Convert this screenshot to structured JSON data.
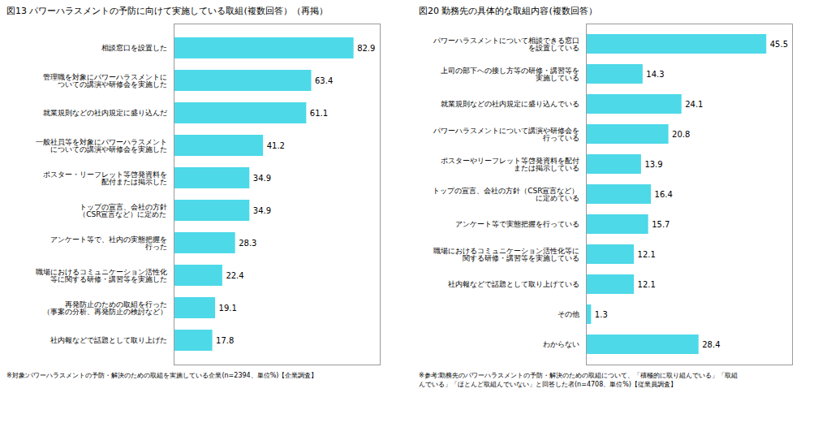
{
  "chart_data": [
    {
      "type": "bar",
      "orientation": "horizontal",
      "title": "図13  パワーハラスメントの予防に向けて実施している取組(複数回答）（再掲）",
      "categories": [
        "相談窓口を設置した",
        "管理職を対象にパワーハラスメントに\nついての講演や研修会を実施した",
        "就業規則などの社内規定に盛り込んだ",
        "一般社員等を対象にパワーハラスメント\nについての講演や研修会を実施した",
        "ポスター・リーフレット等啓発資料を\n配付または掲示した",
        "トップの宣言、会社の方針\n（CSR宣言など）に定めた",
        "アンケート等で、社内の実態把握を\n行った",
        "職場におけるコミュニケーション活性化\n等に関する研修・講習等を実施した",
        "再発防止のための取組を行った\n（事案の分析、再発防止の検討など）",
        "社内報などで話題として取り上げた"
      ],
      "values": [
        82.9,
        63.4,
        61.1,
        41.2,
        34.9,
        34.9,
        28.3,
        22.4,
        19.1,
        17.8
      ],
      "color": "#4DD9E8",
      "xlim": [
        0,
        95
      ],
      "data_labels": true,
      "tick_labels": "y",
      "note": "※対象:パワーハラスメントの予防・解決のための取組を実施している企業(n=2394、単位%)【企業調査】"
    },
    {
      "type": "bar",
      "orientation": "horizontal",
      "title": "図20  勤務先の具体的な取組内容(複数回答）",
      "categories": [
        "パワーハラスメントについて相談できる窓口\nを設置している",
        "上司の部下への接し方等の研修・講習等を\n実施している",
        "就業規則などの社内規定に盛り込んでいる",
        "パワーハラスメントについて講演や研修会を\n行っている",
        "ポスターやリーフレット等啓発資料を配付\nまたは掲示している",
        "トップの宣言、会社の方針（CSR宣言など）\nに定めている",
        "アンケート等で実態把握を行っている",
        "職場におけるコミュニケーション活性化等に\n関する研修・講習等を実施している",
        "社内報などで話題として取り上げている",
        "その他",
        "わからない"
      ],
      "values": [
        45.5,
        14.3,
        24.1,
        20.8,
        13.9,
        16.4,
        15.7,
        12.1,
        12.1,
        1.3,
        28.4
      ],
      "color": "#4DD9E8",
      "xlim": [
        0,
        52
      ],
      "data_labels": true,
      "tick_labels": "y",
      "note": "※参考:勤務先のパワーハラスメントの予防・解決のための取組について、「積極的に取り組んでいる」「取組\nんでいる」「ほとんど取組んでいない」と回答した者(n=4708、単位%)【従業員調査】"
    }
  ]
}
